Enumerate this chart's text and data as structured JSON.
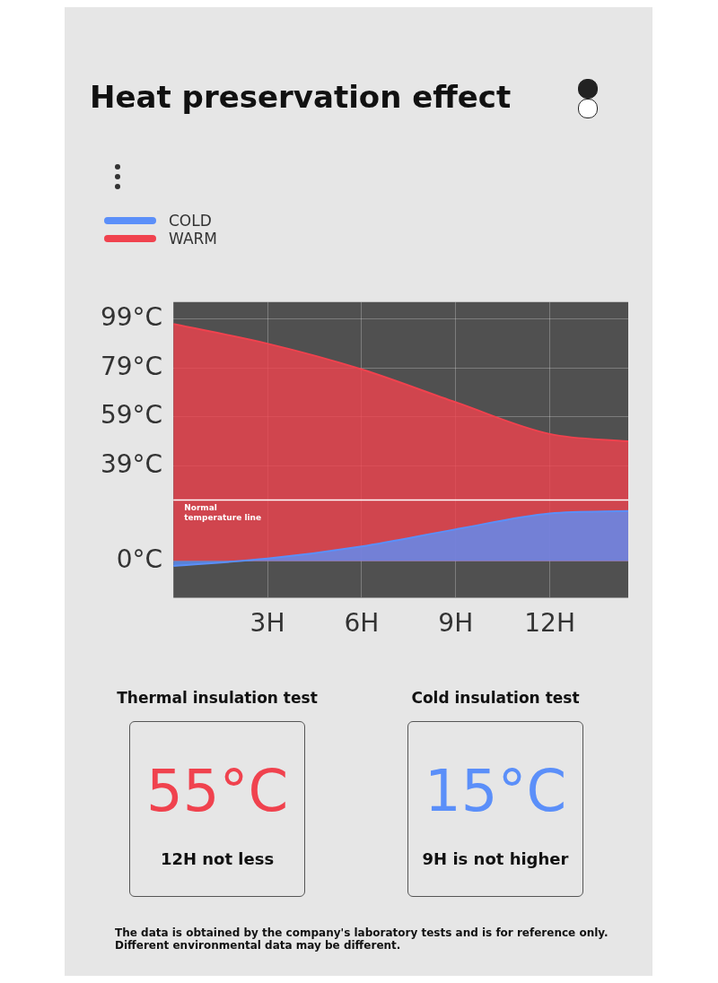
{
  "chart_data": {
    "type": "area",
    "title": "Heat preservation effect",
    "legend": "top left",
    "grid": true,
    "x": [
      0,
      3,
      6,
      9,
      12,
      14.5
    ],
    "series": [
      {
        "name": "COLD",
        "color": "#5b8ff9",
        "values": [
          -2,
          1,
          6,
          13,
          19.5,
          20.5
        ]
      },
      {
        "name": "WARM",
        "color": "#f0424e",
        "values": [
          97,
          89,
          78.5,
          65,
          52,
          49
        ]
      }
    ],
    "xlim": [
      0,
      14.5
    ],
    "xticks": [
      {
        "value": 3,
        "label": "3H"
      },
      {
        "value": 6,
        "label": "6H"
      },
      {
        "value": 9,
        "label": "9H"
      },
      {
        "value": 12,
        "label": "12H"
      }
    ],
    "ylim": [
      -15,
      106
    ],
    "yticks": [
      {
        "value": 0,
        "label": "0°C"
      },
      {
        "value": 39,
        "label": "39°C"
      },
      {
        "value": 59,
        "label": "59°C"
      },
      {
        "value": 79,
        "label": "79°C"
      },
      {
        "value": 99,
        "label": "99°C"
      }
    ],
    "ref_lines": [
      {
        "axis": "y",
        "value": 25,
        "label": "Normal temperature line",
        "color": "#ffffff"
      }
    ],
    "annotations": [
      "Thermal insulation test",
      "55°C",
      "12H not less",
      "Cold insulation test",
      "15°C",
      "9H is not higher",
      "The data is obtained by the company's laboratory tests and is for reference only. Different environmental data may be different."
    ]
  }
}
